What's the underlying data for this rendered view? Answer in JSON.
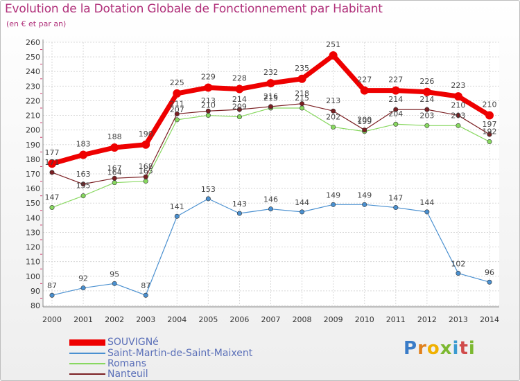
{
  "chart_data": {
    "type": "line",
    "title": "Evolution de la Dotation Globale de Fonctionnement par Habitant",
    "subtitle": "(en € et par an)",
    "xlabel": "",
    "ylabel": "",
    "categories": [
      "2000",
      "2001",
      "2002",
      "2003",
      "2004",
      "2005",
      "2006",
      "2007",
      "2008",
      "2009",
      "2010",
      "2011",
      "2012",
      "2013",
      "2014"
    ],
    "yticks": [
      "80",
      "90",
      "100",
      "110",
      "120",
      "130",
      "140",
      "150",
      "160",
      "170",
      "180",
      "190",
      "200",
      "210",
      "220",
      "230",
      "240",
      "250",
      "260"
    ],
    "ylim": [
      80,
      260
    ],
    "series": [
      {
        "name": "SOUVIGNé",
        "color": "#ee0000",
        "values": [
          177,
          183,
          188,
          190,
          225,
          229,
          228,
          232,
          235,
          251,
          227,
          227,
          226,
          223,
          210
        ],
        "labels": [
          "177",
          "183",
          "188",
          "190",
          "225",
          "229",
          "228",
          "232",
          "235",
          "251",
          "227",
          "227",
          "226",
          "223",
          "210"
        ]
      },
      {
        "name": "Saint-Martin-de-Saint-Maixent",
        "color": "#4a90d0",
        "values": [
          87,
          92,
          95,
          87,
          141,
          153,
          143,
          146,
          144,
          149,
          149,
          147,
          144,
          102,
          96
        ],
        "labels": [
          "87",
          "92",
          "95",
          "87",
          "141",
          "153",
          "143",
          "146",
          "144",
          "149",
          "149",
          "147",
          "144",
          "102",
          "96"
        ]
      },
      {
        "name": "Romans",
        "color": "#88d860",
        "values": [
          147,
          155,
          164,
          165,
          207,
          210,
          209,
          215,
          215,
          202,
          199,
          204,
          203,
          203,
          192
        ],
        "labels": [
          "147",
          "155",
          "164",
          "165",
          "207",
          "210",
          "209",
          "215",
          "215",
          "202",
          "199",
          "204",
          "203",
          "203",
          "192"
        ]
      },
      {
        "name": "Nanteuil",
        "color": "#7a1f22",
        "values": [
          171,
          163,
          167,
          168,
          211,
          213,
          214,
          216,
          218,
          213,
          200,
          214,
          214,
          210,
          197
        ],
        "labels": [
          "171",
          "163",
          "167",
          "168",
          "211",
          "213",
          "214",
          "216",
          "218",
          "213",
          "200",
          "214",
          "214",
          "210",
          "197"
        ]
      }
    ]
  },
  "logo": {
    "letters": [
      "P",
      "r",
      "o",
      "x",
      "i",
      "t",
      "i"
    ]
  }
}
